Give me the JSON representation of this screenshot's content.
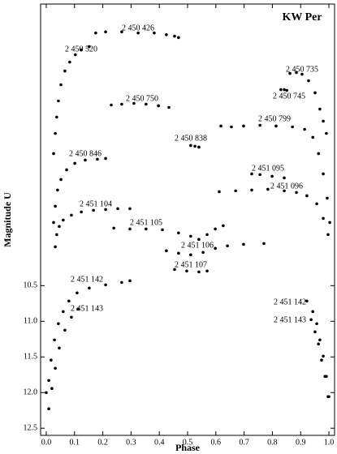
{
  "chart_data": {
    "type": "scatter",
    "title": "KW Per",
    "xlabel": "Phase",
    "ylabel": "Magnitude U",
    "xlim": [
      -0.02,
      1.02
    ],
    "ylim": [
      12.6,
      6.55
    ],
    "xticks": [
      {
        "value": 0,
        "label": "0.0"
      },
      0.1,
      0.2,
      0.3,
      0.4,
      0.5,
      0.6,
      0.7,
      0.8,
      0.9,
      {
        "value": 1,
        "label": "1.0"
      }
    ],
    "yticks": [
      10.5,
      {
        "value": 11,
        "label": "11.0"
      },
      11.5,
      {
        "value": 12,
        "label": "12.0"
      },
      12.5
    ],
    "color": "#000000",
    "series": [
      {
        "name": "2 450 426",
        "x": [
          0.175,
          0.21,
          0.267,
          0.325,
          0.382,
          0.425,
          0.454,
          0.468
        ],
        "values": [
          6.955,
          6.94,
          6.94,
          6.955,
          6.955,
          6.98,
          7.0,
          7.02
        ]
      },
      {
        "name": "2 450 520",
        "x": [
          0.026,
          0.032,
          0.037,
          0.043,
          0.052,
          0.066,
          0.083,
          0.103,
          0.124,
          0.152
        ],
        "values": [
          8.648,
          8.364,
          8.136,
          7.909,
          7.682,
          7.489,
          7.364,
          7.261,
          7.193,
          7.148
        ]
      },
      {
        "name": "2 450 735",
        "x": [
          0.862,
          0.885,
          0.905,
          0.928,
          0.951,
          0.968,
          0.98,
          0.991
        ],
        "values": [
          7.523,
          7.511,
          7.534,
          7.625,
          7.795,
          8.023,
          8.193,
          8.364
        ]
      },
      {
        "name": "2 450 745",
        "x": [
          0.83,
          0.842,
          0.851
        ],
        "values": [
          7.75,
          7.75,
          7.761
        ]
      },
      {
        "name": "2 450 750",
        "x": [
          0.23,
          0.267,
          0.31,
          0.353,
          0.397,
          0.434
        ],
        "values": [
          7.966,
          7.955,
          7.943,
          7.955,
          7.977,
          8.0
        ]
      },
      {
        "name": "2 450 838",
        "x": [
          0.511,
          0.526,
          0.54
        ],
        "values": [
          8.534,
          8.545,
          8.557
        ]
      },
      {
        "name": "2 450 799",
        "x": [
          0.618,
          0.655,
          0.698,
          0.756,
          0.813,
          0.871,
          0.914,
          0.943,
          0.963,
          0.98,
          0.994,
          1.003
        ],
        "values": [
          8.261,
          8.273,
          8.261,
          8.25,
          8.261,
          8.273,
          8.307,
          8.42,
          8.648,
          8.932,
          9.273,
          9.614
        ]
      },
      {
        "name": "2 450 846",
        "x": [
          0.026,
          0.032,
          0.04,
          0.052,
          0.072,
          0.101,
          0.138,
          0.181,
          0.21
        ],
        "values": [
          9.614,
          9.386,
          9.159,
          9.011,
          8.875,
          8.784,
          8.739,
          8.727,
          8.716
        ]
      },
      {
        "name": "2 451 095",
        "x": [
          0.727,
          0.756,
          0.799,
          0.842
        ],
        "values": [
          8.932,
          8.943,
          8.966,
          8.989
        ]
      },
      {
        "name": "2 451 096",
        "x": [
          0.612,
          0.67,
          0.727,
          0.784,
          0.842,
          0.885,
          0.922,
          0.957,
          0.98,
          0.997
        ],
        "values": [
          9.182,
          9.17,
          9.159,
          9.148,
          9.17,
          9.193,
          9.239,
          9.352,
          9.557,
          9.784
        ]
      },
      {
        "name": "2 451 104",
        "x": [
          0.032,
          0.037,
          0.046,
          0.06,
          0.089,
          0.124,
          0.167,
          0.21,
          0.253,
          0.296
        ],
        "values": [
          9.955,
          9.784,
          9.67,
          9.58,
          9.511,
          9.466,
          9.443,
          9.432,
          9.42,
          9.42
        ]
      },
      {
        "name": "2 451 105",
        "x": [
          0.239,
          0.296,
          0.353,
          0.411,
          0.468,
          0.511,
          0.54,
          0.569,
          0.598,
          0.626
        ],
        "values": [
          9.693,
          9.705,
          9.705,
          9.716,
          9.761,
          9.807,
          9.852,
          9.784,
          9.705,
          9.659
        ]
      },
      {
        "name": "2 451 106",
        "x": [
          0.425,
          0.468,
          0.511,
          0.555,
          0.598,
          0.641,
          0.698,
          0.77
        ],
        "values": [
          10.011,
          10.045,
          10.068,
          10.034,
          9.977,
          9.943,
          9.92,
          9.909
        ]
      },
      {
        "name": "2 451 107",
        "x": [
          0.454,
          0.497,
          0.54,
          0.569
        ],
        "values": [
          10.273,
          10.295,
          10.307,
          10.295
        ]
      },
      {
        "name": "2 451 142",
        "x": [
          0.0,
          0.009,
          0.017,
          0.029,
          0.043,
          0.06,
          0.08,
          0.109,
          0.152,
          0.21,
          0.267,
          0.296
        ],
        "values": [
          12.0,
          11.83,
          11.545,
          11.261,
          11.034,
          10.864,
          10.716,
          10.602,
          10.534,
          10.489,
          10.455,
          10.432
        ]
      },
      {
        "name": "2 451 142",
        "x": [
          0.922,
          0.943,
          0.957,
          0.968,
          0.98,
          0.991,
          1.0
        ],
        "values": [
          10.716,
          10.864,
          11.034,
          11.261,
          11.489,
          11.773,
          12.057
        ]
      },
      {
        "name": "2 451 143",
        "x": [
          0.009,
          0.02,
          0.032,
          0.046,
          0.066,
          0.089,
          0.112
        ],
        "values": [
          12.227,
          11.943,
          11.659,
          11.375,
          11.125,
          10.943,
          10.83
        ]
      },
      {
        "name": "2 451 143",
        "x": [
          0.937,
          0.951,
          0.963,
          0.974,
          0.986,
          0.997
        ],
        "values": [
          10.977,
          11.148,
          11.318,
          11.545,
          11.773,
          12.057
        ]
      }
    ]
  }
}
